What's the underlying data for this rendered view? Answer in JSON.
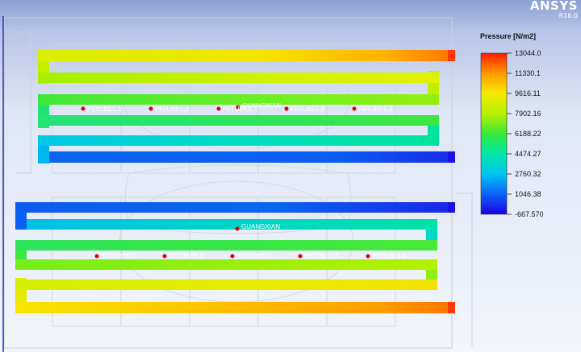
{
  "app": {
    "name": "ANSYS",
    "version": "R16.0"
  },
  "legend": {
    "title": "Pressure [N/m2]",
    "ticks": [
      "13044.0",
      "11330.1",
      "9616.11",
      "7902.16",
      "6188.22",
      "4474.27",
      "2760.32",
      "1046.38",
      "-667.570"
    ],
    "colors": [
      "#ff1a00",
      "#ff9a00",
      "#f5ea00",
      "#b8f000",
      "#35e83a",
      "#00e7a8",
      "#00c4f0",
      "#0b63f7",
      "#1a00e6"
    ]
  },
  "labels": {
    "top_points": [
      "P6TUBE5.5",
      "P6TUBE5.6",
      "P6TUBE5.7",
      "P6TUBE5.8",
      "P6TUBE5.9"
    ],
    "top_center": "GUANGXIAN",
    "bottom_center": "GUANGXIAN",
    "bottom_points": [
      "P6TUBE6.0",
      "P6TUBE6.1",
      "P6TUBE6.2",
      "P6TUBE6.3",
      "P6TUBE6.4"
    ]
  }
}
